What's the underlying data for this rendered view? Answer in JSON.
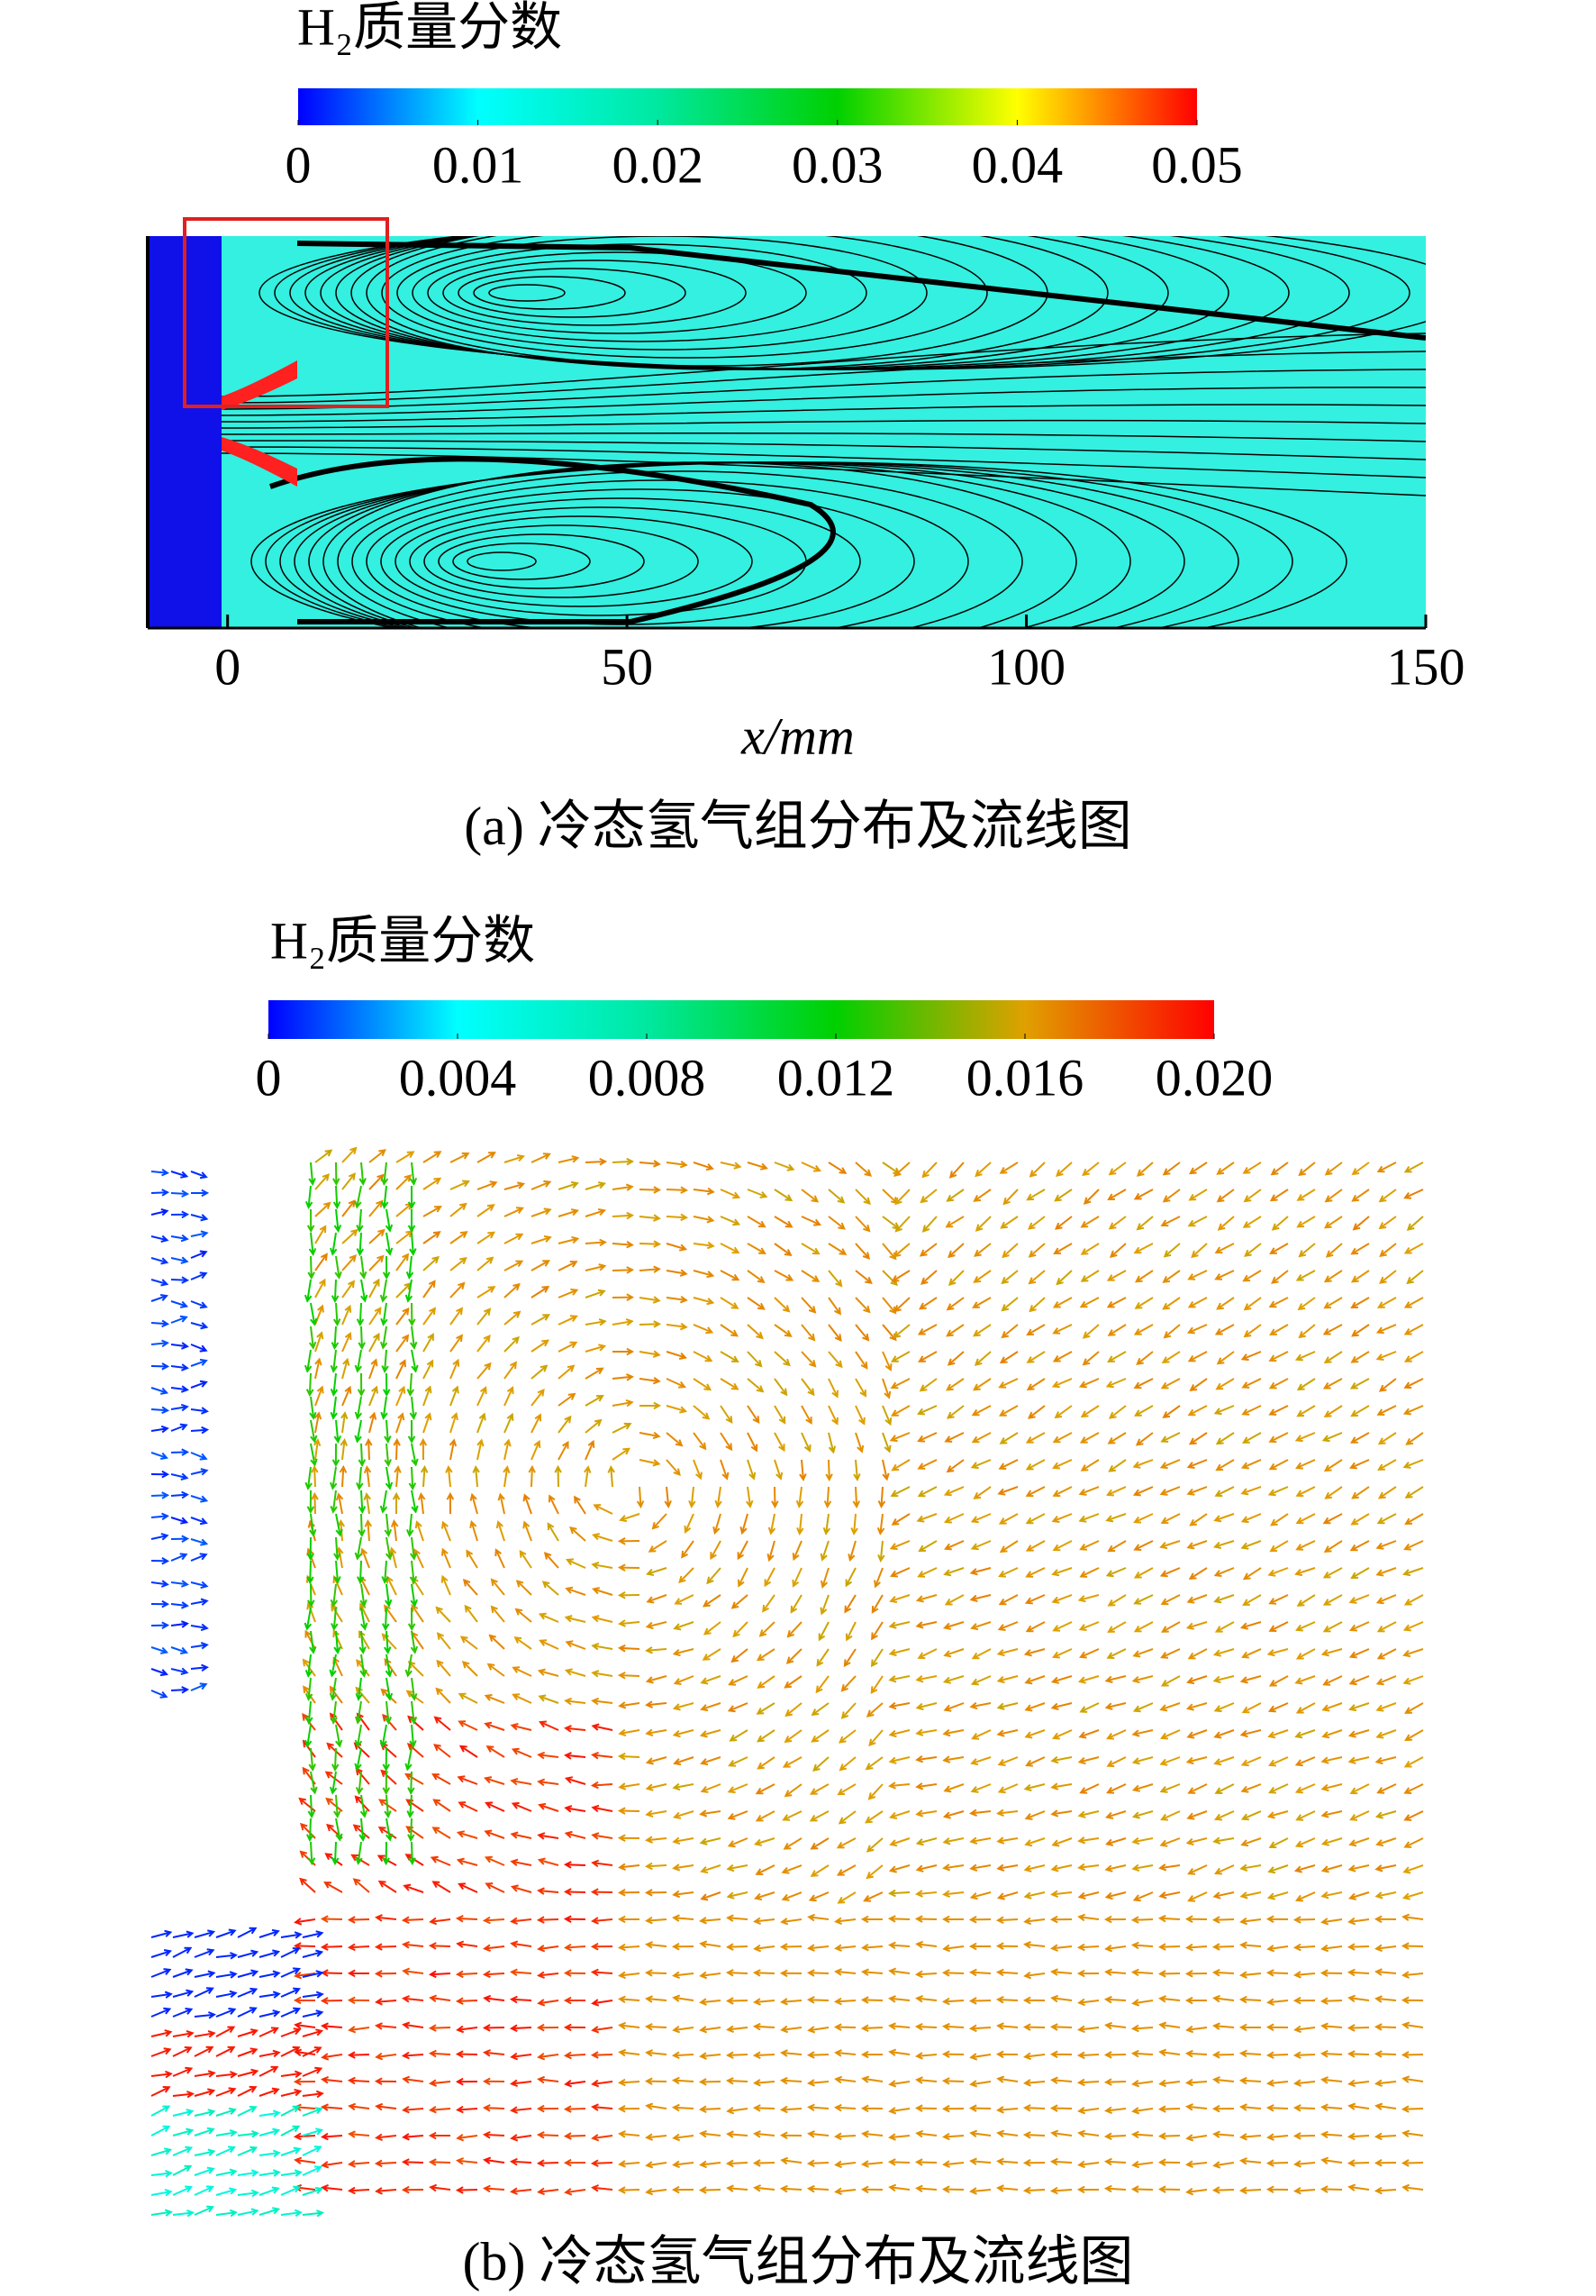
{
  "chart_data": [
    {
      "type": "contour",
      "colorbar_title": "H₂质量分数",
      "colormap": [
        "#0000ff",
        "#00ffff",
        "#00e8a0",
        "#00d000",
        "#ffff00",
        "#ff0000"
      ],
      "clim": [
        0,
        0.05
      ],
      "cticks": [
        0,
        0.01,
        0.02,
        0.03,
        0.04,
        0.05
      ],
      "xlim": [
        -10,
        150
      ],
      "xticks": [
        0,
        50,
        100,
        150
      ],
      "xlabel": "x/mm",
      "caption": "(a) 冷态氢气组分布及流线图"
    },
    {
      "type": "vector",
      "colorbar_title": "H₂质量分数",
      "colormap": [
        "#0000ff",
        "#00ffff",
        "#00e8a0",
        "#00d000",
        "#e0a000",
        "#ff0000"
      ],
      "clim": [
        0,
        0.02
      ],
      "cticks": [
        0,
        0.004,
        0.008,
        0.012,
        0.016,
        {
          "value": 0.02,
          "label": "0.020"
        }
      ],
      "caption": "(b) 冷态氢气组分布及流线图"
    }
  ]
}
